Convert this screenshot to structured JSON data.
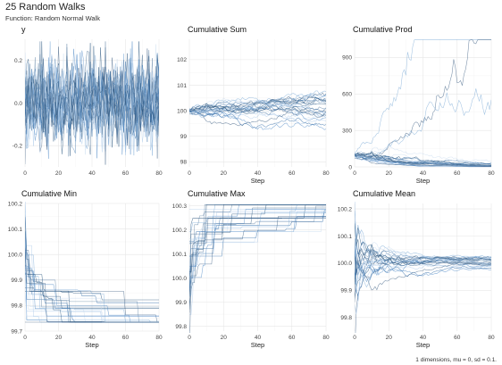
{
  "header": {
    "title": "25 Random Walks",
    "subtitle": "Function: Random Normal Walk"
  },
  "caption": "1 dimensions, mu = 0, sd = 0.1.",
  "colors": {
    "palette": [
      "#1f4e79",
      "#2e6aa6",
      "#4a86c5",
      "#7aa9d6",
      "#a9c8e8",
      "#c9dcef",
      "#5b7fa3",
      "#3b5d82"
    ],
    "grid": "#e6e6e6"
  },
  "chart_data": [
    {
      "type": "line",
      "title": "y",
      "xlabel": "",
      "xlim": [
        0,
        80
      ],
      "ylim": [
        -0.3,
        0.3
      ],
      "x_ticks": [
        0,
        20,
        40,
        60,
        80
      ],
      "y_ticks": [
        -0.2,
        0,
        0.2
      ],
      "y_tick_labels": [
        "-0.2",
        "0.0",
        "0.2"
      ],
      "n_series": 25,
      "steps": 81,
      "series_description": "independent normal steps, mu 0, sd 0.1, values mostly within -0.2 to 0.2"
    },
    {
      "type": "line",
      "title": "Cumulative Sum",
      "xlabel": "Step",
      "xlim": [
        0,
        80
      ],
      "ylim": [
        97.8,
        102.8
      ],
      "x_ticks": [
        0,
        20,
        40,
        60,
        80
      ],
      "y_ticks": [
        98,
        99,
        100,
        101,
        102
      ],
      "y_tick_labels": [
        "98",
        "99",
        "100",
        "101",
        "102"
      ],
      "n_series": 25,
      "steps": 81,
      "series_description": "cumulative sums starting at 100, fanning out to about 98 to 102.6 by step 80"
    },
    {
      "type": "line",
      "title": "Cumulative Prod",
      "xlabel": "Step",
      "xlim": [
        0,
        80
      ],
      "ylim": [
        0,
        1050
      ],
      "x_ticks": [
        0,
        20,
        40,
        60,
        80
      ],
      "y_ticks": [
        0,
        300,
        600,
        900
      ],
      "y_tick_labels": [
        "0",
        "300",
        "600",
        "900"
      ],
      "n_series": 25,
      "steps": 81,
      "series_description": "cumulative products starting near 100, most decaying toward 0, a few rising, largest reaching about 1050 near step 78"
    },
    {
      "type": "line",
      "title": "Cumulative Min",
      "xlabel": "Step",
      "xlim": [
        0,
        80
      ],
      "ylim": [
        99.7,
        100.2
      ],
      "x_ticks": [
        0,
        20,
        40,
        60,
        80
      ],
      "y_ticks": [
        99.7,
        99.8,
        99.9,
        100.0,
        100.1,
        100.2
      ],
      "y_tick_labels": [
        "99.7",
        "99.8",
        "99.9",
        "100.0",
        "100.1",
        "100.2"
      ],
      "n_series": 25,
      "steps": 81,
      "series_description": "running minimum starting near 100, stepping down to between 99.74 and 99.87"
    },
    {
      "type": "line",
      "title": "Cumulative Max",
      "xlabel": "Step",
      "xlim": [
        0,
        80
      ],
      "ylim": [
        99.78,
        100.31
      ],
      "x_ticks": [
        0,
        20,
        40,
        60,
        80
      ],
      "y_ticks": [
        99.8,
        99.9,
        100.0,
        100.1,
        100.2,
        100.3
      ],
      "y_tick_labels": [
        "99.8",
        "99.9",
        "100.0",
        "100.1",
        "100.2",
        "100.3"
      ],
      "n_series": 25,
      "steps": 81,
      "series_description": "running maximum starting near 100, stepping up to between 100.17 and 100.30"
    },
    {
      "type": "line",
      "title": "Cumulative Mean",
      "xlabel": "Step",
      "xlim": [
        0,
        80
      ],
      "ylim": [
        99.75,
        100.22
      ],
      "x_ticks": [
        0,
        20,
        40,
        60,
        80
      ],
      "y_ticks": [
        99.8,
        99.9,
        100.0,
        100.1,
        100.2
      ],
      "y_tick_labels": [
        "99.8",
        "99.9",
        "100.0",
        "100.1",
        "100.2"
      ],
      "n_series": 25,
      "steps": 81,
      "series_description": "running mean, wide spread near step 0 (99.77 to 100.2), converging to about 99.98 to 100.03"
    }
  ]
}
